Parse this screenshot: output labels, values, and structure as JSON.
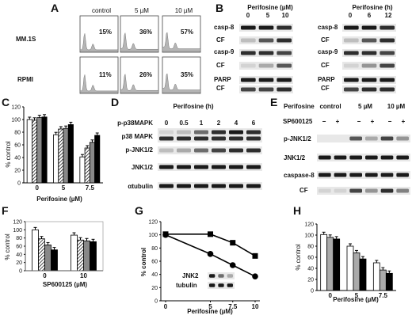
{
  "panels": {
    "A": {
      "letter": "A",
      "col_headers": [
        "control",
        "5 µM",
        "10 µM"
      ],
      "rows": [
        {
          "label": "MM.1S",
          "percents": [
            "15%",
            "36%",
            "57%"
          ]
        },
        {
          "label": "RPMI",
          "percents": [
            "11%",
            "26%",
            "35%"
          ]
        }
      ]
    },
    "B": {
      "letter": "B",
      "left_title": "Perifosine (µM)",
      "left_lanes": [
        "0",
        "5",
        "10"
      ],
      "right_title": "Perifosine (h)",
      "right_lanes": [
        "0",
        "6",
        "12"
      ],
      "row_labels": [
        "casp-8",
        "CF",
        "casp-9",
        "CF",
        "PARP",
        "CF"
      ]
    },
    "C": {
      "letter": "C",
      "ylabel": "% control",
      "xlabel": "Perifosine (µM)",
      "y_ticks": [
        "0",
        "20",
        "40",
        "60",
        "80",
        "100",
        "120"
      ]
    },
    "D": {
      "letter": "D",
      "title": "Perifosine (h)",
      "lanes": [
        "0",
        "0.5",
        "1",
        "2",
        "4",
        "6"
      ],
      "row_labels": [
        "p-p38MAPK",
        "p38 MAPK",
        "p-JNK1/2",
        "JNK1/2",
        "αtubulin"
      ]
    },
    "E": {
      "letter": "E",
      "treatment_label": "Perifosine",
      "groups": [
        "control",
        "5 µM",
        "10 µM"
      ],
      "inhibitor_label": "SP600125",
      "signs": [
        "−",
        "+",
        "−",
        "+",
        "−",
        "+"
      ],
      "row_labels": [
        "p-JNK1/2",
        "JNK1/2",
        "caspase-8",
        "CF"
      ]
    },
    "F": {
      "letter": "F",
      "ylabel": "% control",
      "xlabel": "SP600125 (µM)",
      "y_ticks": [
        "0",
        "20",
        "40",
        "60",
        "80",
        "100",
        "120"
      ]
    },
    "G": {
      "letter": "G",
      "ylabel": "% control",
      "xlabel": "Perifosine (µM)",
      "y_ticks": [
        "0",
        "20",
        "40",
        "60",
        "80",
        "100",
        "120"
      ],
      "blot_labels": [
        "JNK2",
        "tubulin"
      ]
    },
    "H": {
      "letter": "H",
      "ylabel": "% control",
      "xlabel": "Perifosine (µM)",
      "y_ticks": [
        "0",
        "20",
        "40",
        "60",
        "80",
        "100",
        "120"
      ]
    }
  },
  "chart_data": [
    {
      "panel": "C",
      "type": "bar",
      "categories": [
        "0",
        "5",
        "7.5"
      ],
      "ylim": [
        0,
        120
      ],
      "series": [
        {
          "values": [
            100,
            76,
            41
          ],
          "color": "#ffffff"
        },
        {
          "values": [
            99,
            85,
            55
          ],
          "color": "#ffffff",
          "pattern": "hatch"
        },
        {
          "values": [
            103,
            86,
            64
          ],
          "color": "#888888"
        },
        {
          "values": [
            104,
            92,
            75
          ],
          "color": "#000000"
        }
      ]
    },
    {
      "panel": "F",
      "type": "bar",
      "categories": [
        "0",
        "10"
      ],
      "ylim": [
        0,
        120
      ],
      "series": [
        {
          "values": [
            100,
            87
          ],
          "color": "#ffffff"
        },
        {
          "values": [
            78,
            75
          ],
          "color": "#ffffff",
          "pattern": "hatch"
        },
        {
          "values": [
            63,
            73
          ],
          "color": "#888888"
        },
        {
          "values": [
            51,
            71
          ],
          "color": "#000000"
        }
      ]
    },
    {
      "panel": "G",
      "type": "line",
      "x": [
        0,
        5,
        7.5,
        10
      ],
      "x_ticks": [
        "0",
        "5",
        "7.5",
        "10"
      ],
      "ylim": [
        0,
        120
      ],
      "series": [
        {
          "values": [
            101,
            101,
            88,
            68
          ],
          "marker": "square"
        },
        {
          "values": [
            100,
            71,
            54,
            37
          ],
          "marker": "circle"
        }
      ]
    },
    {
      "panel": "H",
      "type": "bar",
      "categories": [
        "0",
        "5",
        "7.5"
      ],
      "ylim": [
        0,
        120
      ],
      "series": [
        {
          "values": [
            101,
            80,
            50
          ],
          "color": "#ffffff"
        },
        {
          "values": [
            96,
            68,
            37
          ],
          "color": "#aaaaaa"
        },
        {
          "values": [
            93,
            57,
            31
          ],
          "color": "#000000"
        }
      ]
    }
  ]
}
